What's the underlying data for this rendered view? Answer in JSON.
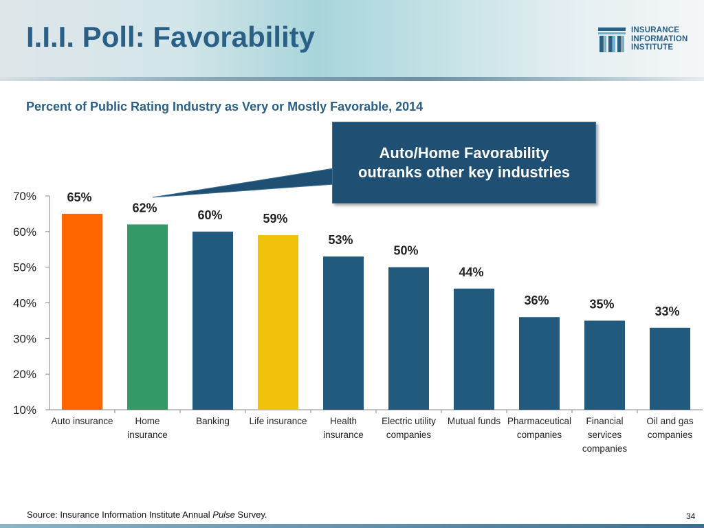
{
  "header": {
    "title": "I.I.I. Poll: Favorability",
    "logo_lines": [
      "INSURANCE",
      "INFORMATION",
      "INSTITUTE"
    ]
  },
  "subtitle": "Percent of Public Rating Industry as Very or Mostly Favorable, 2014",
  "callout": {
    "line1": "Auto/Home Favorability",
    "line2": "outranks other key industries"
  },
  "chart_data": {
    "type": "bar",
    "title": "Percent of Public Rating Industry as Very or Mostly Favorable, 2014",
    "xlabel": "",
    "ylabel": "",
    "ylim": [
      10,
      70
    ],
    "yticks": [
      10,
      20,
      30,
      40,
      50,
      60,
      70
    ],
    "ytick_labels": [
      "10%",
      "20%",
      "30%",
      "40%",
      "50%",
      "60%",
      "70%"
    ],
    "grid": false,
    "categories": [
      [
        "Auto insurance"
      ],
      [
        "Home",
        "insurance"
      ],
      [
        "Banking"
      ],
      [
        "Life insurance"
      ],
      [
        "Health",
        "insurance"
      ],
      [
        "Electric utility",
        "companies"
      ],
      [
        "Mutual funds"
      ],
      [
        "Pharmaceutical",
        "companies"
      ],
      [
        "Financial",
        "services",
        "companies"
      ],
      [
        "Oil and gas",
        "companies"
      ]
    ],
    "values": [
      65,
      62,
      60,
      59,
      53,
      50,
      44,
      36,
      35,
      33
    ],
    "value_labels": [
      "65%",
      "62%",
      "60%",
      "59%",
      "53%",
      "50%",
      "44%",
      "36%",
      "35%",
      "33%"
    ],
    "bar_colors": [
      "#ff6600",
      "#339966",
      "#215a7d",
      "#f0c20c",
      "#215a7d",
      "#215a7d",
      "#215a7d",
      "#215a7d",
      "#215a7d",
      "#215a7d"
    ]
  },
  "footer": {
    "source_prefix": "Source: Insurance Information Institute Annual ",
    "source_italic": "Pulse",
    "source_suffix": " Survey.",
    "page_number": "34"
  }
}
